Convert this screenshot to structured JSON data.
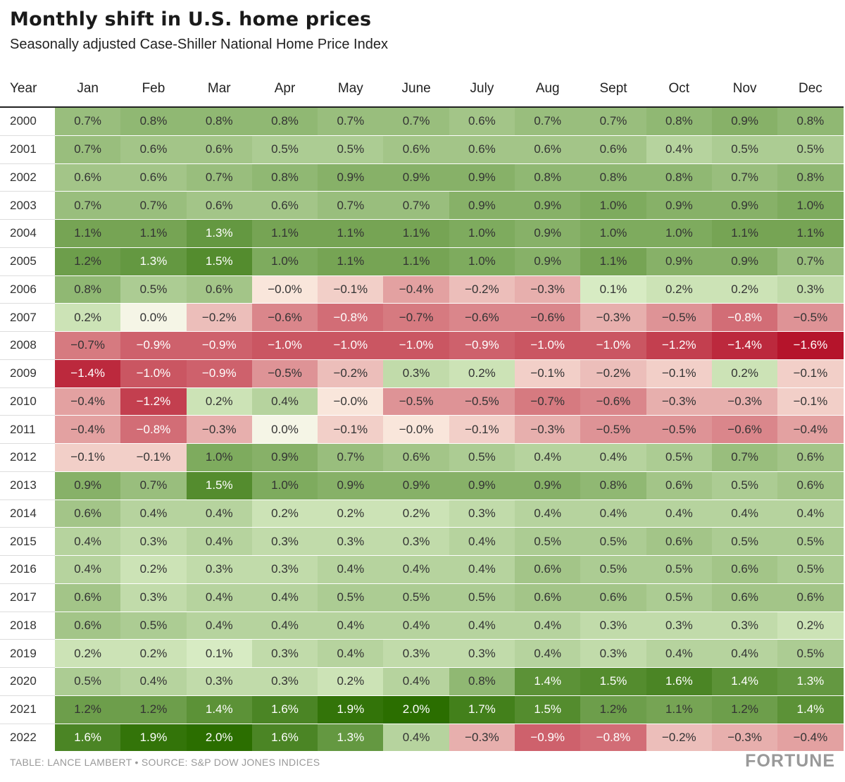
{
  "title": "Monthly shift in U.S. home prices",
  "subtitle": "Seasonally adjusted Case-Shiller National Home Price Index",
  "footer": {
    "credit": "TABLE: LANCE LAMBERT • SOURCE: S&P DOW JONES INDICES",
    "logo": "FORTUNE"
  },
  "colors": {
    "positive_light": "#e6f6d4",
    "positive_dark": "#2b6e00",
    "negative_light": "#f9e6db",
    "negative_dark": "#b5142b"
  },
  "chart_data": {
    "type": "heatmap",
    "title": "Monthly shift in U.S. home prices",
    "subtitle": "Seasonally adjusted Case-Shiller National Home Price Index",
    "row_header": "Year",
    "columns": [
      "Jan",
      "Feb",
      "Mar",
      "Apr",
      "May",
      "June",
      "July",
      "Aug",
      "Sept",
      "Oct",
      "Nov",
      "Dec"
    ],
    "rows": [
      {
        "year": "2000",
        "cells": [
          "0.7%",
          "0.8%",
          "0.8%",
          "0.8%",
          "0.7%",
          "0.7%",
          "0.6%",
          "0.7%",
          "0.7%",
          "0.8%",
          "0.9%",
          "0.8%"
        ]
      },
      {
        "year": "2001",
        "cells": [
          "0.7%",
          "0.6%",
          "0.6%",
          "0.5%",
          "0.5%",
          "0.6%",
          "0.6%",
          "0.6%",
          "0.6%",
          "0.4%",
          "0.5%",
          "0.5%"
        ]
      },
      {
        "year": "2002",
        "cells": [
          "0.6%",
          "0.6%",
          "0.7%",
          "0.8%",
          "0.9%",
          "0.9%",
          "0.9%",
          "0.8%",
          "0.8%",
          "0.8%",
          "0.7%",
          "0.8%"
        ]
      },
      {
        "year": "2003",
        "cells": [
          "0.7%",
          "0.7%",
          "0.6%",
          "0.6%",
          "0.7%",
          "0.7%",
          "0.9%",
          "0.9%",
          "1.0%",
          "0.9%",
          "0.9%",
          "1.0%"
        ]
      },
      {
        "year": "2004",
        "cells": [
          "1.1%",
          "1.1%",
          "1.3%",
          "1.1%",
          "1.1%",
          "1.1%",
          "1.0%",
          "0.9%",
          "1.0%",
          "1.0%",
          "1.1%",
          "1.1%"
        ]
      },
      {
        "year": "2005",
        "cells": [
          "1.2%",
          "1.3%",
          "1.5%",
          "1.0%",
          "1.1%",
          "1.1%",
          "1.0%",
          "0.9%",
          "1.1%",
          "0.9%",
          "0.9%",
          "0.7%"
        ]
      },
      {
        "year": "2006",
        "cells": [
          "0.8%",
          "0.5%",
          "0.6%",
          "−0.0%",
          "−0.1%",
          "−0.4%",
          "−0.2%",
          "−0.3%",
          "0.1%",
          "0.2%",
          "0.2%",
          "0.3%"
        ]
      },
      {
        "year": "2007",
        "cells": [
          "0.2%",
          "0.0%",
          "−0.2%",
          "−0.6%",
          "−0.8%",
          "−0.7%",
          "−0.6%",
          "−0.6%",
          "−0.3%",
          "−0.5%",
          "−0.8%",
          "−0.5%"
        ]
      },
      {
        "year": "2008",
        "cells": [
          "−0.7%",
          "−0.9%",
          "−0.9%",
          "−1.0%",
          "−1.0%",
          "−1.0%",
          "−0.9%",
          "−1.0%",
          "−1.0%",
          "−1.2%",
          "−1.4%",
          "−1.6%"
        ]
      },
      {
        "year": "2009",
        "cells": [
          "−1.4%",
          "−1.0%",
          "−0.9%",
          "−0.5%",
          "−0.2%",
          "0.3%",
          "0.2%",
          "−0.1%",
          "−0.2%",
          "−0.1%",
          "0.2%",
          "−0.1%"
        ]
      },
      {
        "year": "2010",
        "cells": [
          "−0.4%",
          "−1.2%",
          "0.2%",
          "0.4%",
          "−0.0%",
          "−0.5%",
          "−0.5%",
          "−0.7%",
          "−0.6%",
          "−0.3%",
          "−0.3%",
          "−0.1%"
        ]
      },
      {
        "year": "2011",
        "cells": [
          "−0.4%",
          "−0.8%",
          "−0.3%",
          "0.0%",
          "−0.1%",
          "−0.0%",
          "−0.1%",
          "−0.3%",
          "−0.5%",
          "−0.5%",
          "−0.6%",
          "−0.4%"
        ]
      },
      {
        "year": "2012",
        "cells": [
          "−0.1%",
          "−0.1%",
          "1.0%",
          "0.9%",
          "0.7%",
          "0.6%",
          "0.5%",
          "0.4%",
          "0.4%",
          "0.5%",
          "0.7%",
          "0.6%"
        ]
      },
      {
        "year": "2013",
        "cells": [
          "0.9%",
          "0.7%",
          "1.5%",
          "1.0%",
          "0.9%",
          "0.9%",
          "0.9%",
          "0.9%",
          "0.8%",
          "0.6%",
          "0.5%",
          "0.6%"
        ]
      },
      {
        "year": "2014",
        "cells": [
          "0.6%",
          "0.4%",
          "0.4%",
          "0.2%",
          "0.2%",
          "0.2%",
          "0.3%",
          "0.4%",
          "0.4%",
          "0.4%",
          "0.4%",
          "0.4%"
        ]
      },
      {
        "year": "2015",
        "cells": [
          "0.4%",
          "0.3%",
          "0.4%",
          "0.3%",
          "0.3%",
          "0.3%",
          "0.4%",
          "0.5%",
          "0.5%",
          "0.6%",
          "0.5%",
          "0.5%"
        ]
      },
      {
        "year": "2016",
        "cells": [
          "0.4%",
          "0.2%",
          "0.3%",
          "0.3%",
          "0.4%",
          "0.4%",
          "0.4%",
          "0.6%",
          "0.5%",
          "0.5%",
          "0.6%",
          "0.5%"
        ]
      },
      {
        "year": "2017",
        "cells": [
          "0.6%",
          "0.3%",
          "0.4%",
          "0.4%",
          "0.5%",
          "0.5%",
          "0.5%",
          "0.6%",
          "0.6%",
          "0.5%",
          "0.6%",
          "0.6%"
        ]
      },
      {
        "year": "2018",
        "cells": [
          "0.6%",
          "0.5%",
          "0.4%",
          "0.4%",
          "0.4%",
          "0.4%",
          "0.4%",
          "0.4%",
          "0.3%",
          "0.3%",
          "0.3%",
          "0.2%"
        ]
      },
      {
        "year": "2019",
        "cells": [
          "0.2%",
          "0.2%",
          "0.1%",
          "0.3%",
          "0.4%",
          "0.3%",
          "0.3%",
          "0.4%",
          "0.3%",
          "0.4%",
          "0.4%",
          "0.5%"
        ]
      },
      {
        "year": "2020",
        "cells": [
          "0.5%",
          "0.4%",
          "0.3%",
          "0.3%",
          "0.2%",
          "0.4%",
          "0.8%",
          "1.4%",
          "1.5%",
          "1.6%",
          "1.4%",
          "1.3%"
        ]
      },
      {
        "year": "2021",
        "cells": [
          "1.2%",
          "1.2%",
          "1.4%",
          "1.6%",
          "1.9%",
          "2.0%",
          "1.7%",
          "1.5%",
          "1.2%",
          "1.1%",
          "1.2%",
          "1.4%"
        ]
      },
      {
        "year": "2022",
        "cells": [
          "1.6%",
          "1.9%",
          "2.0%",
          "1.6%",
          "1.3%",
          "0.4%",
          "−0.3%",
          "−0.9%",
          "−0.8%",
          "−0.2%",
          "−0.3%",
          "−0.4%"
        ]
      }
    ]
  }
}
